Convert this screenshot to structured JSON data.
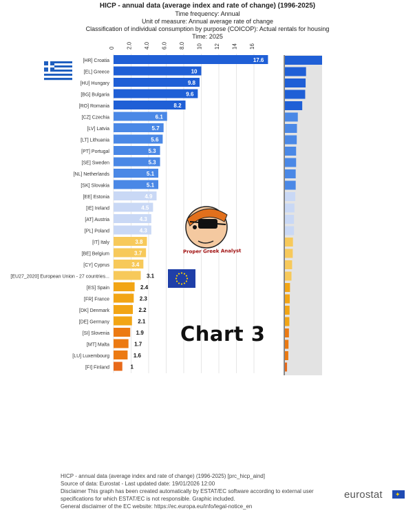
{
  "header": {
    "title": "HICP - annual data (average index and rate of change) (1996-2025)",
    "lines": [
      "Time frequency:  Annual",
      "Unit of measure:  Annual average rate of change",
      "Classification of individual consumption by purpose (COICOP):  Actual rentals for housing",
      "Time:  2025"
    ]
  },
  "chart_data": {
    "type": "bar",
    "orientation": "horizontal",
    "xlim": [
      0,
      18
    ],
    "ticks": [
      "0",
      "2.0",
      "4.0",
      "6.0",
      "8.0",
      "10",
      "12",
      "14",
      "16"
    ],
    "categories": [
      "[HR] Croatia",
      "[EL] Greece",
      "[HU] Hungary",
      "[BG] Bulgaria",
      "[RO] Romania",
      "[CZ] Czechia",
      "[LV] Latvia",
      "[LT] Lithuania",
      "[PT] Portugal",
      "[SE] Sweden",
      "[NL] Netherlands",
      "[SK] Slovakia",
      "[EE] Estonia",
      "[IE] Ireland",
      "[AT] Austria",
      "[PL] Poland",
      "[IT] Italy",
      "[BE] Belgium",
      "[CY] Cyprus",
      "[EU27_2020] European Union - 27 countries...",
      "[ES] Spain",
      "[FR] France",
      "[DK] Denmark",
      "[DE] Germany",
      "[SI] Slovenia",
      "[MT] Malta",
      "[LU] Luxembourg",
      "[FI] Finland"
    ],
    "values": [
      17.6,
      10,
      9.8,
      9.6,
      8.2,
      6.1,
      5.7,
      5.6,
      5.3,
      5.3,
      5.1,
      5.1,
      4.9,
      4.5,
      4.3,
      4.3,
      3.8,
      3.7,
      3.4,
      3.1,
      2.4,
      2.3,
      2.2,
      2.1,
      1.9,
      1.7,
      1.6,
      1
    ],
    "labels": [
      "17.6",
      "10",
      "9.8",
      "9.6",
      "8.2",
      "6.1",
      "5.7",
      "5.6",
      "5.3",
      "5.3",
      "5.1",
      "5.1",
      "4.9",
      "4.5",
      "4.3",
      "4.3",
      "3.8",
      "3.7",
      "3.4",
      "3.1",
      "2.4",
      "2.3",
      "2.2",
      "2.1",
      "1.9",
      "1.7",
      "1.6",
      "1"
    ],
    "colors": {
      "dark_blue": "#1f5fd6",
      "mid_blue": "#4a88e6",
      "light_blue": "#c9d8f5",
      "yellow": "#f7c95a",
      "orange": "#f2a515",
      "dark_orange": "#ec7a12",
      "red_orange": "#e86a1a"
    },
    "grid": true
  },
  "overlay": {
    "chart_label": "Chart 3",
    "logo_caption": "Proper Greek Analyst"
  },
  "footer": {
    "lines": [
      "HICP - annual data (average index and rate of change) (1996-2025) [prc_hicp_aind]",
      "Source of data: Eurostat - Last updated date: 19/01/2026 12:00",
      "Disclaimer This graph has been created automatically by ESTAT/EC software according to external user",
      "specifications for which ESTAT/EC is not responsible. Graphic included.",
      "General disclaimer of the EC website: https://ec.europa.eu/info/legal-notice_en"
    ],
    "brand": "eurostat"
  }
}
